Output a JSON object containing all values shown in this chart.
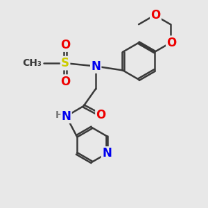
{
  "bg_color": "#e8e8e8",
  "bond_color": "#3a3a3a",
  "bond_width": 1.8,
  "dbo": 0.055,
  "atom_colors": {
    "N": "#0000ee",
    "O": "#ee0000",
    "S": "#cccc00",
    "H": "#777777",
    "C": "#3a3a3a"
  },
  "fs": 12
}
